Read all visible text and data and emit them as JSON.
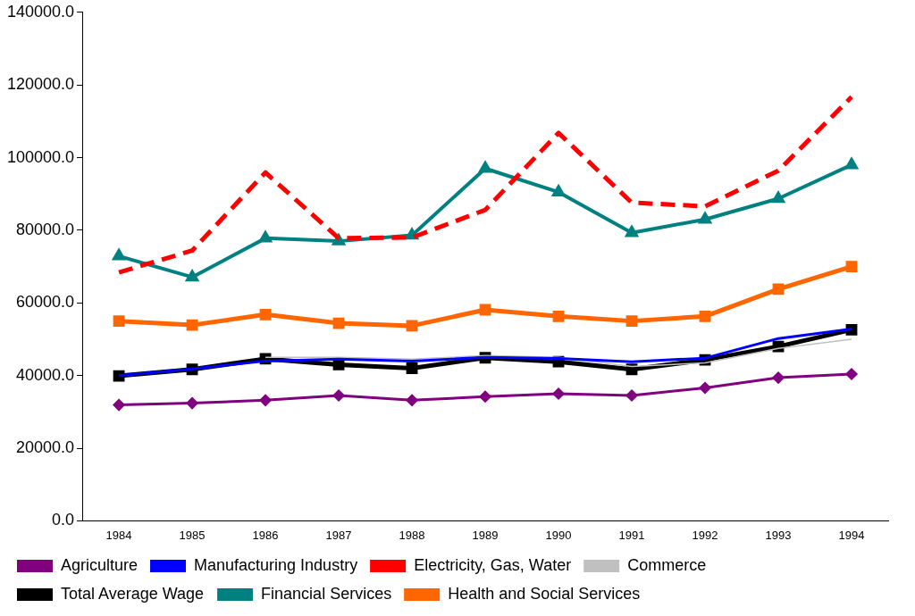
{
  "chart_data": {
    "type": "line",
    "categories": [
      "1984",
      "1985",
      "1986",
      "1987",
      "1988",
      "1989",
      "1990",
      "1991",
      "1992",
      "1993",
      "1994"
    ],
    "ylim": [
      0,
      140000
    ],
    "yticks": [
      {
        "value": 0,
        "label": "0.0"
      },
      {
        "value": 20000,
        "label": "20000.0"
      },
      {
        "value": 40000,
        "label": "40000.0"
      },
      {
        "value": 60000,
        "label": "60000.0"
      },
      {
        "value": 80000,
        "label": "80000.0"
      },
      {
        "value": 100000,
        "label": "100000.0"
      },
      {
        "value": 120000,
        "label": "120000.0"
      },
      {
        "value": 140000,
        "label": "140000.0"
      }
    ],
    "grid": false,
    "legend": "bottom",
    "series": [
      {
        "name": "Agriculture",
        "color": "#800080",
        "marker": "diamond",
        "values": [
          31900,
          32400,
          33200,
          34500,
          33200,
          34200,
          35000,
          34500,
          36600,
          39400,
          40400
        ]
      },
      {
        "name": "Manufacturing Industry",
        "color": "#0000ff",
        "marker": "none",
        "values": [
          40000,
          41800,
          44000,
          44500,
          44000,
          45000,
          44700,
          43800,
          44800,
          50200,
          52800
        ]
      },
      {
        "name": "Electricity, Gas, Water",
        "color": "#ff0000",
        "marker": "none",
        "line_style": "dashed",
        "values": [
          68400,
          74400,
          95900,
          77800,
          78000,
          85600,
          106800,
          87600,
          86600,
          96400,
          116700
        ]
      },
      {
        "name": "Commerce",
        "color": "#c0c0c0",
        "marker": "none",
        "values": [
          null,
          null,
          45000,
          45000,
          44500,
          45500,
          45000,
          42500,
          43500,
          47500,
          50000
        ]
      },
      {
        "name": "Total Average Wage",
        "color": "#000000",
        "marker": "square",
        "values": [
          39900,
          41700,
          44600,
          43000,
          42000,
          44900,
          43800,
          41700,
          44300,
          48000,
          52600
        ]
      },
      {
        "name": "Financial Services",
        "color": "#008080",
        "marker": "triangle",
        "values": [
          72900,
          67100,
          77800,
          77000,
          78600,
          97000,
          90500,
          79300,
          83000,
          88700,
          98000
        ]
      },
      {
        "name": "Health and Social Services",
        "color": "#ff6600",
        "marker": "square",
        "values": [
          55000,
          53900,
          56800,
          54400,
          53700,
          58100,
          56300,
          55000,
          56300,
          63800,
          70000
        ]
      }
    ]
  }
}
